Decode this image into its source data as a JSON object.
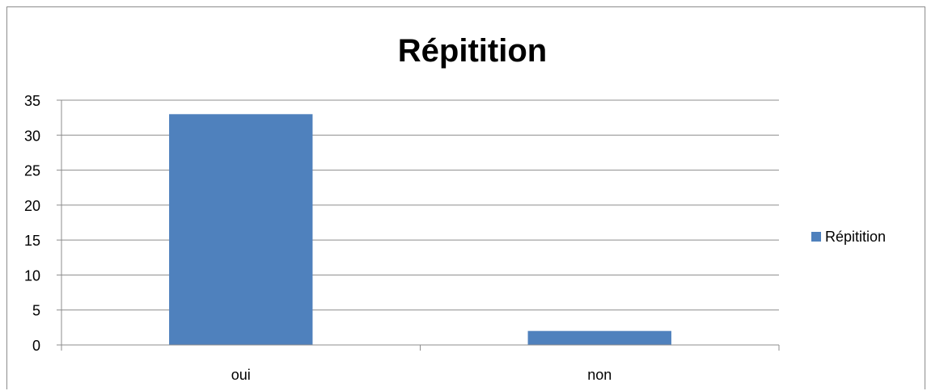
{
  "chart_data": {
    "type": "bar",
    "title": "Répitition",
    "categories": [
      "oui",
      "non"
    ],
    "series": [
      {
        "name": "Répitition",
        "values": [
          33,
          2
        ]
      }
    ],
    "yticks": [
      0,
      5,
      10,
      15,
      20,
      25,
      30,
      35
    ],
    "ylim": [
      0,
      35
    ],
    "xlabel": "",
    "ylabel": "",
    "grid": true,
    "legend_position": "right",
    "bar_color": "#4f81bd",
    "grid_color": "#8c8c8c"
  }
}
